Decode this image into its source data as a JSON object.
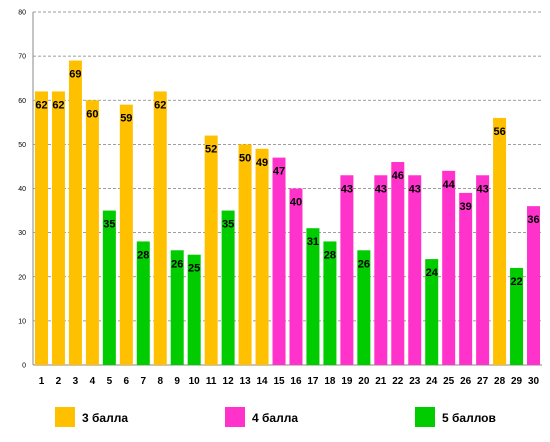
{
  "chart_data": {
    "type": "bar",
    "title": "",
    "xlabel": "",
    "ylabel": "",
    "ylim": [
      0,
      80
    ],
    "y_ticks": [
      0,
      10,
      20,
      30,
      40,
      50,
      60,
      70,
      80
    ],
    "grid": "horizontal dashed",
    "legend_position": "bottom",
    "categories": [
      "1",
      "2",
      "3",
      "4",
      "5",
      "6",
      "7",
      "8",
      "9",
      "10",
      "11",
      "12",
      "13",
      "14",
      "15",
      "16",
      "17",
      "18",
      "19",
      "20",
      "21",
      "22",
      "23",
      "24",
      "25",
      "26",
      "27",
      "28",
      "29",
      "30"
    ],
    "values": [
      62,
      62,
      69,
      60,
      35,
      59,
      28,
      62,
      26,
      25,
      52,
      35,
      50,
      49,
      47,
      40,
      31,
      28,
      43,
      26,
      43,
      46,
      43,
      24,
      44,
      39,
      43,
      56,
      22,
      36
    ],
    "groups": [
      "3",
      "3",
      "3",
      "3",
      "5",
      "3",
      "5",
      "3",
      "5",
      "5",
      "3",
      "5",
      "3",
      "3",
      "4",
      "4",
      "5",
      "5",
      "4",
      "5",
      "4",
      "4",
      "4",
      "5",
      "4",
      "4",
      "4",
      "3",
      "5",
      "4"
    ],
    "series": [
      {
        "key": "3",
        "name": "3 балла",
        "color": "#FFC000"
      },
      {
        "key": "4",
        "name": "4 балла",
        "color": "#FF33CC"
      },
      {
        "key": "5",
        "name": "5 баллов",
        "color": "#00CC00"
      }
    ]
  }
}
